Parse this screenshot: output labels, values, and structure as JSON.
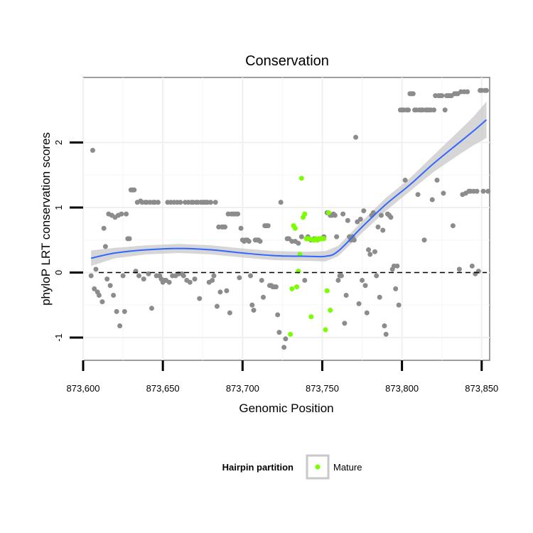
{
  "chart_data": {
    "type": "scatter",
    "title": "Conservation",
    "xlabel": "Genomic Position",
    "ylabel": "phyloP LRT conservation scores",
    "xlim": [
      873600,
      873855
    ],
    "ylim": [
      -1.35,
      3.0
    ],
    "x_ticks": [
      873600,
      873650,
      873700,
      873750,
      873800,
      873850
    ],
    "x_tick_labels": [
      "873,600",
      "873,650",
      "873,700",
      "873,750",
      "873,800",
      "873,850"
    ],
    "y_ticks": [
      -1,
      0,
      1,
      2
    ],
    "y_tick_labels": [
      "-1",
      "0",
      "1",
      "2"
    ],
    "reference_line": {
      "y": 0,
      "style": "dashed"
    },
    "legend": {
      "title": "Hairpin partition",
      "entries": [
        {
          "label": "Mature",
          "color": "#7CFC00"
        }
      ],
      "position": "bottom"
    },
    "colors": {
      "other": "#8c8c8c",
      "mature": "#7CFC00",
      "smooth": "#3366FF",
      "ribbon": "#c8c8c8"
    },
    "series": [
      {
        "name": "Other",
        "points": [
          [
            873605,
            -0.05
          ],
          [
            873606,
            1.88
          ],
          [
            873607,
            -0.25
          ],
          [
            873608,
            0.05
          ],
          [
            873609,
            -0.3
          ],
          [
            873610,
            -0.35
          ],
          [
            873612,
            -0.45
          ],
          [
            873613,
            0.68
          ],
          [
            873614,
            0.4
          ],
          [
            873615,
            -0.1
          ],
          [
            873616,
            0.9
          ],
          [
            873617,
            -0.2
          ],
          [
            873618,
            0.88
          ],
          [
            873619,
            -0.35
          ],
          [
            873620,
            0.85
          ],
          [
            873621,
            -0.6
          ],
          [
            873622,
            0.88
          ],
          [
            873623,
            -0.82
          ],
          [
            873624,
            0.9
          ],
          [
            873625,
            -0.05
          ],
          [
            873626,
            -0.6
          ],
          [
            873627,
            0.9
          ],
          [
            873628,
            0.52
          ],
          [
            873629,
            0.52
          ],
          [
            873630,
            1.27
          ],
          [
            873631,
            1.27
          ],
          [
            873632,
            1.27
          ],
          [
            873633,
            0.02
          ],
          [
            873634,
            1.08
          ],
          [
            873635,
            -0.05
          ],
          [
            873636,
            1.1
          ],
          [
            873637,
            1.08
          ],
          [
            873638,
            -0.1
          ],
          [
            873639,
            1.08
          ],
          [
            873640,
            1.08
          ],
          [
            873641,
            -0.02
          ],
          [
            873642,
            1.08
          ],
          [
            873643,
            -0.55
          ],
          [
            873644,
            1.08
          ],
          [
            873645,
            1.08
          ],
          [
            873646,
            -0.05
          ],
          [
            873647,
            1.08
          ],
          [
            873648,
            -0.05
          ],
          [
            873649,
            -0.1
          ],
          [
            873650,
            -0.15
          ],
          [
            873651,
            -0.12
          ],
          [
            873652,
            -0.12
          ],
          [
            873653,
            1.08
          ],
          [
            873654,
            -0.15
          ],
          [
            873655,
            1.08
          ],
          [
            873656,
            -0.05
          ],
          [
            873657,
            1.08
          ],
          [
            873658,
            -0.05
          ],
          [
            873659,
            1.08
          ],
          [
            873660,
            -0.02
          ],
          [
            873661,
            1.08
          ],
          [
            873662,
            -0.02
          ],
          [
            873663,
            -0.05
          ],
          [
            873664,
            1.08
          ],
          [
            873665,
            -0.12
          ],
          [
            873666,
            1.08
          ],
          [
            873667,
            -0.15
          ],
          [
            873668,
            1.08
          ],
          [
            873669,
            1.08
          ],
          [
            873670,
            -0.1
          ],
          [
            873671,
            1.08
          ],
          [
            873672,
            1.08
          ],
          [
            873673,
            -0.4
          ],
          [
            873674,
            1.08
          ],
          [
            873675,
            1.08
          ],
          [
            873676,
            1.08
          ],
          [
            873677,
            1.08
          ],
          [
            873678,
            1.08
          ],
          [
            873679,
            -0.15
          ],
          [
            873680,
            1.08
          ],
          [
            873681,
            -0.12
          ],
          [
            873682,
            -0.05
          ],
          [
            873683,
            1.08
          ],
          [
            873684,
            -0.52
          ],
          [
            873685,
            0.7
          ],
          [
            873686,
            -0.3
          ],
          [
            873687,
            0.7
          ],
          [
            873688,
            0.7
          ],
          [
            873689,
            0.7
          ],
          [
            873690,
            -0.28
          ],
          [
            873691,
            0.9
          ],
          [
            873692,
            -0.62
          ],
          [
            873693,
            0.9
          ],
          [
            873694,
            0.9
          ],
          [
            873695,
            0.9
          ],
          [
            873696,
            0.9
          ],
          [
            873697,
            0.9
          ],
          [
            873698,
            -0.08
          ],
          [
            873699,
            0.68
          ],
          [
            873700,
            0.5
          ],
          [
            873701,
            0.48
          ],
          [
            873702,
            0.5
          ],
          [
            873703,
            0.5
          ],
          [
            873704,
            0.48
          ],
          [
            873705,
            -0.05
          ],
          [
            873706,
            -0.5
          ],
          [
            873707,
            -0.58
          ],
          [
            873708,
            0.5
          ],
          [
            873709,
            0.5
          ],
          [
            873710,
            0.5
          ],
          [
            873711,
            0.48
          ],
          [
            873712,
            -0.12
          ],
          [
            873713,
            -0.38
          ],
          [
            873714,
            0.72
          ],
          [
            873715,
            0.72
          ],
          [
            873716,
            0.72
          ],
          [
            873717,
            -0.2
          ],
          [
            873718,
            -0.2
          ],
          [
            873719,
            -0.22
          ],
          [
            873720,
            -0.22
          ],
          [
            873721,
            -0.22
          ],
          [
            873722,
            -0.65
          ],
          [
            873723,
            -0.92
          ],
          [
            873724,
            1.08
          ],
          [
            873726,
            -1.15
          ],
          [
            873727,
            -1.02
          ],
          [
            873728,
            0.52
          ],
          [
            873729,
            0.52
          ],
          [
            873731,
            0.48
          ],
          [
            873733,
            0.48
          ],
          [
            873735,
            0.45
          ],
          [
            873737,
            0.55
          ],
          [
            873739,
            -0.12
          ],
          [
            873741,
            0.55
          ],
          [
            873743,
            0.5
          ],
          [
            873745,
            0.52
          ],
          [
            873747,
            0.5
          ],
          [
            873749,
            0.52
          ],
          [
            873751,
            0.55
          ],
          [
            873753,
            0.92
          ],
          [
            873755,
            0.88
          ],
          [
            873756,
            0.88
          ],
          [
            873757,
            0.9
          ],
          [
            873758,
            0.88
          ],
          [
            873759,
            0.55
          ],
          [
            873760,
            -0.12
          ],
          [
            873761,
            -0.05
          ],
          [
            873762,
            -0.05
          ],
          [
            873763,
            0.9
          ],
          [
            873764,
            -0.78
          ],
          [
            873765,
            -0.35
          ],
          [
            873766,
            0.8
          ],
          [
            873767,
            0.55
          ],
          [
            873768,
            0.5
          ],
          [
            873769,
            0.55
          ],
          [
            873770,
            0.5
          ],
          [
            873771,
            2.08
          ],
          [
            873772,
            0.78
          ],
          [
            873773,
            -0.48
          ],
          [
            873774,
            0.82
          ],
          [
            873775,
            -0.12
          ],
          [
            873776,
            0.95
          ],
          [
            873777,
            -0.2
          ],
          [
            873778,
            -0.62
          ],
          [
            873779,
            0.35
          ],
          [
            873780,
            0.28
          ],
          [
            873781,
            0.88
          ],
          [
            873782,
            0.92
          ],
          [
            873783,
            0.32
          ],
          [
            873784,
            -0.05
          ],
          [
            873785,
            0.7
          ],
          [
            873786,
            -0.38
          ],
          [
            873787,
            0.88
          ],
          [
            873788,
            0.65
          ],
          [
            873789,
            -0.82
          ],
          [
            873790,
            -0.95
          ],
          [
            873791,
            0.9
          ],
          [
            873792,
            0.88
          ],
          [
            873793,
            0.85
          ],
          [
            873794,
            0.05
          ],
          [
            873795,
            0.1
          ],
          [
            873796,
            -0.25
          ],
          [
            873797,
            0.1
          ],
          [
            873798,
            -0.5
          ],
          [
            873799,
            2.5
          ],
          [
            873800,
            2.5
          ],
          [
            873801,
            2.5
          ],
          [
            873802,
            1.42
          ],
          [
            873803,
            2.5
          ],
          [
            873804,
            2.5
          ],
          [
            873805,
            2.75
          ],
          [
            873806,
            2.75
          ],
          [
            873807,
            2.75
          ],
          [
            873808,
            2.5
          ],
          [
            873809,
            2.5
          ],
          [
            873810,
            1.2
          ],
          [
            873811,
            2.5
          ],
          [
            873812,
            2.5
          ],
          [
            873813,
            2.5
          ],
          [
            873814,
            0.5
          ],
          [
            873815,
            2.5
          ],
          [
            873816,
            2.5
          ],
          [
            873817,
            2.5
          ],
          [
            873818,
            2.5
          ],
          [
            873819,
            1.12
          ],
          [
            873820,
            2.5
          ],
          [
            873821,
            2.72
          ],
          [
            873822,
            1.42
          ],
          [
            873823,
            2.72
          ],
          [
            873824,
            2.72
          ],
          [
            873825,
            2.72
          ],
          [
            873826,
            1.22
          ],
          [
            873827,
            2.5
          ],
          [
            873828,
            2.72
          ],
          [
            873829,
            2.72
          ],
          [
            873830,
            2.72
          ],
          [
            873831,
            2.72
          ],
          [
            873832,
            0.72
          ],
          [
            873833,
            2.75
          ],
          [
            873834,
            2.75
          ],
          [
            873835,
            2.75
          ],
          [
            873836,
            0.05
          ],
          [
            873837,
            2.78
          ],
          [
            873838,
            1.2
          ],
          [
            873839,
            2.78
          ],
          [
            873840,
            1.22
          ],
          [
            873841,
            2.78
          ],
          [
            873842,
            1.25
          ],
          [
            873843,
            1.25
          ],
          [
            873844,
            0.1
          ],
          [
            873845,
            1.25
          ],
          [
            873846,
            -0.02
          ],
          [
            873847,
            1.25
          ],
          [
            873848,
            0.02
          ],
          [
            873849,
            2.8
          ],
          [
            873850,
            2.8
          ],
          [
            873851,
            1.25
          ],
          [
            873852,
            2.8
          ],
          [
            873853,
            2.8
          ],
          [
            873854,
            1.25
          ]
        ]
      },
      {
        "name": "Mature",
        "points": [
          [
            873730,
            -0.95
          ],
          [
            873731,
            -0.25
          ],
          [
            873732,
            0.72
          ],
          [
            873733,
            0.68
          ],
          [
            873734,
            -0.22
          ],
          [
            873735,
            0.02
          ],
          [
            873736,
            0.28
          ],
          [
            873737,
            1.45
          ],
          [
            873738,
            0.85
          ],
          [
            873739,
            0.9
          ],
          [
            873740,
            0.52
          ],
          [
            873741,
            0.52
          ],
          [
            873742,
            0.52
          ],
          [
            873743,
            -0.68
          ],
          [
            873744,
            0.5
          ],
          [
            873745,
            0.5
          ],
          [
            873746,
            0.52
          ],
          [
            873747,
            0.5
          ],
          [
            873748,
            0.52
          ],
          [
            873749,
            0.52
          ],
          [
            873750,
            0.52
          ],
          [
            873751,
            0.52
          ],
          [
            873752,
            -0.88
          ],
          [
            873753,
            -0.28
          ],
          [
            873754,
            0.92
          ],
          [
            873755,
            -0.58
          ]
        ]
      }
    ],
    "smooth": {
      "method": "loess",
      "x": [
        873605,
        873620,
        873640,
        873660,
        873680,
        873700,
        873720,
        873740,
        873752,
        873760,
        873775,
        873790,
        873805,
        873820,
        873835,
        873845,
        873853
      ],
      "y": [
        0.22,
        0.3,
        0.35,
        0.37,
        0.35,
        0.3,
        0.26,
        0.25,
        0.25,
        0.33,
        0.7,
        1.05,
        1.35,
        1.68,
        1.98,
        2.18,
        2.35
      ],
      "se_band": [
        0.12,
        0.08,
        0.07,
        0.07,
        0.07,
        0.07,
        0.07,
        0.07,
        0.08,
        0.08,
        0.09,
        0.1,
        0.1,
        0.13,
        0.18,
        0.22,
        0.28
      ]
    }
  }
}
